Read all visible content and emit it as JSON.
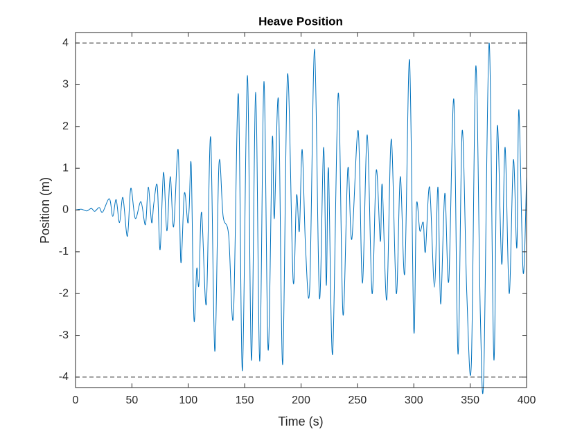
{
  "chart_data": {
    "type": "line",
    "title": "Heave Position",
    "x_label": "Time (s)",
    "y_label": "Position (m)",
    "xlim": [
      0,
      400
    ],
    "xticks": [
      0,
      50,
      100,
      150,
      200,
      250,
      300,
      350,
      400
    ],
    "ylim": [
      -4.25,
      4.25
    ],
    "yticks": [
      -4,
      -3,
      -2,
      -1,
      0,
      1,
      2,
      3,
      4
    ],
    "reference_lines": [
      4,
      -4
    ],
    "reference_color": "#333333",
    "x": [
      0,
      5,
      10,
      14,
      17,
      21,
      24,
      30,
      33,
      36,
      39,
      42,
      46,
      49,
      53,
      58,
      62,
      64.5,
      67.5,
      69.4,
      72.5,
      75,
      78,
      81,
      84,
      87,
      91,
      93.4,
      96.5,
      99.5,
      100.8,
      102.6,
      105,
      107.5,
      109.4,
      111.8,
      116,
      119.8,
      123.5,
      127.2,
      130.9,
      135.8,
      140,
      144.4,
      148,
      152.4,
      156,
      159.8,
      163.4,
      167.1,
      170.8,
      174.5,
      176.3,
      180,
      183.7,
      188,
      193,
      196,
      198.5,
      201,
      204,
      207.7,
      212,
      216.3,
      220,
      222.4,
      224.3,
      228,
      233,
      237.2,
      241.5,
      245,
      250.7,
      254.4,
      258.7,
      263,
      266.7,
      270.3,
      272,
      276,
      280,
      284.5,
      288,
      292,
      296.2,
      300,
      302.3,
      305.4,
      308.4,
      310.3,
      314,
      318.3,
      321.4,
      323.8,
      327.5,
      331,
      335.5,
      339.2,
      342.9,
      347,
      351,
      355,
      359,
      362,
      366.8,
      371,
      374,
      378,
      381,
      384.6,
      388.3,
      391.4,
      393.2,
      397,
      400
    ],
    "series": [
      {
        "name": "Heave Position",
        "color": "#0072bd",
        "values": [
          0,
          0.02,
          -0.02,
          0.04,
          -0.03,
          0.06,
          -0.05,
          0.27,
          -0.15,
          0.25,
          -0.3,
          0.3,
          -0.63,
          0.52,
          -0.2,
          0.2,
          -0.35,
          0.55,
          -0.3,
          0.15,
          0.58,
          -0.95,
          0.9,
          -0.5,
          0.8,
          -0.4,
          1.45,
          -1.25,
          0.4,
          -0.3,
          0.05,
          1.07,
          -2.6,
          -1.4,
          -1.8,
          -0.05,
          -2.25,
          1.75,
          -3.38,
          1.1,
          -0.15,
          -0.6,
          -2.55,
          2.78,
          -3.85,
          3.22,
          -3.6,
          2.82,
          -3.62,
          3.08,
          -3.35,
          1.7,
          -0.2,
          2.62,
          -3.7,
          3.25,
          -1.7,
          0.35,
          -0.5,
          1.45,
          -0.9,
          -1.85,
          3.85,
          -2.1,
          1.5,
          -1.8,
          1.0,
          -3.45,
          2.8,
          -2.5,
          1.0,
          -0.7,
          1.9,
          -1.75,
          1.8,
          -2.0,
          0.95,
          -0.75,
          0.6,
          -2.15,
          1.7,
          -2.0,
          0.8,
          -1.5,
          3.6,
          -2.88,
          0.1,
          -0.5,
          -0.3,
          -1.0,
          0.55,
          -1.85,
          0.55,
          -2.25,
          0.4,
          -1.7,
          2.65,
          -3.45,
          1.9,
          -2.0,
          -3.7,
          3.45,
          -2.5,
          -4.0,
          4.0,
          -3.58,
          2.0,
          -1.3,
          1.5,
          -2.0,
          1.2,
          -0.9,
          2.4,
          -1.5,
          0.8
        ]
      }
    ]
  }
}
